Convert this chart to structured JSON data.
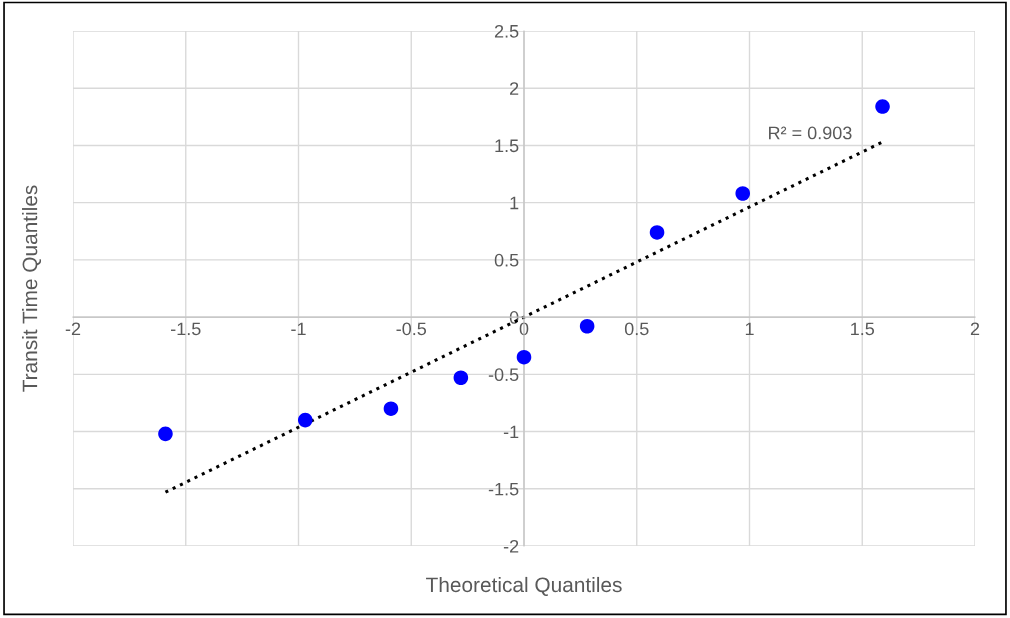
{
  "chart_data": {
    "type": "scatter",
    "xlabel": "Theoretical Quantiles",
    "ylabel": "Transit Time Quantiles",
    "xlim": [
      -2,
      2
    ],
    "xticks": [
      -2,
      -1.5,
      -1,
      -0.5,
      0,
      0.5,
      1,
      1.5,
      2
    ],
    "ylim": [
      -2,
      2.5
    ],
    "yticks": [
      -2,
      -1.5,
      -1,
      -0.5,
      0,
      0.5,
      1,
      1.5,
      2,
      2.5
    ],
    "grid": true,
    "marker": "circle",
    "legend": false,
    "annotations": [
      "R² = 0.903"
    ],
    "series": [
      {
        "color": "#0000ff",
        "x": [
          -1.59,
          -0.97,
          -0.59,
          -0.28,
          0,
          0.28,
          0.59,
          0.97,
          1.59
        ],
        "values": [
          -1.02,
          -0.9,
          -0.8,
          -0.53,
          -0.35,
          -0.08,
          0.74,
          1.08,
          1.84
        ]
      },
      {
        "type": "line",
        "color": "#000000",
        "line_style": "dotted",
        "marker": "none",
        "x": [
          -1.59,
          1.59
        ],
        "values": [
          -1.53,
          1.53
        ]
      }
    ]
  }
}
